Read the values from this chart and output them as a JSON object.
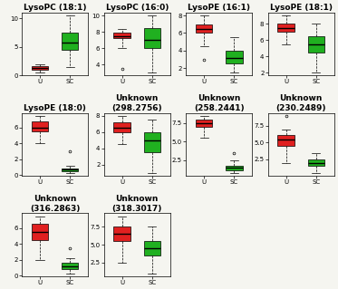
{
  "plots": [
    {
      "title": "LysoPC (18:1)",
      "red": {
        "whislo": 0.5,
        "q1": 1.0,
        "median": 1.3,
        "q3": 1.6,
        "whishi": 2.0,
        "fliers": []
      },
      "green": {
        "whislo": 1.5,
        "q1": 4.5,
        "median": 5.8,
        "q3": 7.5,
        "whishi": 10.5,
        "fliers": []
      }
    },
    {
      "title": "LysoPC (16:0)",
      "red": {
        "whislo": 6.0,
        "q1": 7.2,
        "median": 7.5,
        "q3": 7.9,
        "whishi": 8.3,
        "fliers": [
          3.5
        ]
      },
      "green": {
        "whislo": 3.0,
        "q1": 6.0,
        "median": 7.0,
        "q3": 8.5,
        "whishi": 10.0,
        "fliers": []
      }
    },
    {
      "title": "LysoPE (16:1)",
      "red": {
        "whislo": 4.5,
        "q1": 6.0,
        "median": 6.5,
        "q3": 7.0,
        "whishi": 8.0,
        "fliers": [
          3.0
        ]
      },
      "green": {
        "whislo": 1.5,
        "q1": 2.5,
        "median": 3.2,
        "q3": 4.0,
        "whishi": 5.5,
        "fliers": []
      }
    },
    {
      "title": "LysoPE (18:1)",
      "red": {
        "whislo": 5.5,
        "q1": 7.0,
        "median": 7.5,
        "q3": 8.0,
        "whishi": 9.0,
        "fliers": []
      },
      "green": {
        "whislo": 2.0,
        "q1": 4.5,
        "median": 5.5,
        "q3": 6.5,
        "whishi": 8.0,
        "fliers": []
      }
    },
    {
      "title": "LysoPE (18:0)",
      "red": {
        "whislo": 4.0,
        "q1": 5.5,
        "median": 6.0,
        "q3": 6.8,
        "whishi": 7.5,
        "fliers": []
      },
      "green": {
        "whislo": 0.3,
        "q1": 0.5,
        "median": 0.7,
        "q3": 0.9,
        "whishi": 1.2,
        "fliers": [
          3.0
        ]
      }
    },
    {
      "title": "Unknown\n(298.2756)",
      "red": {
        "whislo": 4.5,
        "q1": 6.0,
        "median": 6.5,
        "q3": 7.2,
        "whishi": 8.0,
        "fliers": []
      },
      "green": {
        "whislo": 1.0,
        "q1": 3.5,
        "median": 5.0,
        "q3": 6.0,
        "whishi": 7.5,
        "fliers": []
      }
    },
    {
      "title": "Unknown\n(258.2441)",
      "red": {
        "whislo": 5.5,
        "q1": 7.0,
        "median": 7.5,
        "q3": 8.0,
        "whishi": 8.5,
        "fliers": []
      },
      "green": {
        "whislo": 0.8,
        "q1": 1.2,
        "median": 1.5,
        "q3": 1.8,
        "whishi": 2.5,
        "fliers": [
          3.5
        ]
      }
    },
    {
      "title": "Unknown\n(230.2489)",
      "red": {
        "whislo": 2.0,
        "q1": 4.5,
        "median": 5.5,
        "q3": 6.2,
        "whishi": 7.0,
        "fliers": [
          9.0
        ]
      },
      "green": {
        "whislo": 0.5,
        "q1": 1.5,
        "median": 2.0,
        "q3": 2.5,
        "whishi": 3.5,
        "fliers": []
      }
    },
    {
      "title": "Unknown\n(316.2863)",
      "red": {
        "whislo": 2.0,
        "q1": 4.5,
        "median": 5.5,
        "q3": 6.5,
        "whishi": 7.5,
        "fliers": []
      },
      "green": {
        "whislo": 0.3,
        "q1": 0.8,
        "median": 1.2,
        "q3": 1.6,
        "whishi": 2.2,
        "fliers": [
          3.5
        ]
      }
    },
    {
      "title": "Unknown\n(318.3017)",
      "red": {
        "whislo": 2.5,
        "q1": 5.5,
        "median": 6.5,
        "q3": 7.5,
        "whishi": 9.0,
        "fliers": []
      },
      "green": {
        "whislo": 1.0,
        "q1": 3.5,
        "median": 4.5,
        "q3": 5.5,
        "whishi": 7.5,
        "fliers": []
      }
    }
  ],
  "red_color": "#e02020",
  "green_color": "#20b020",
  "background": "#f5f5f0",
  "xlabel_red": "U",
  "xlabel_green": "SC",
  "title_fontsize": 6.5,
  "tick_fontsize": 5,
  "nrows": 3,
  "ncols": 4,
  "total": 10
}
